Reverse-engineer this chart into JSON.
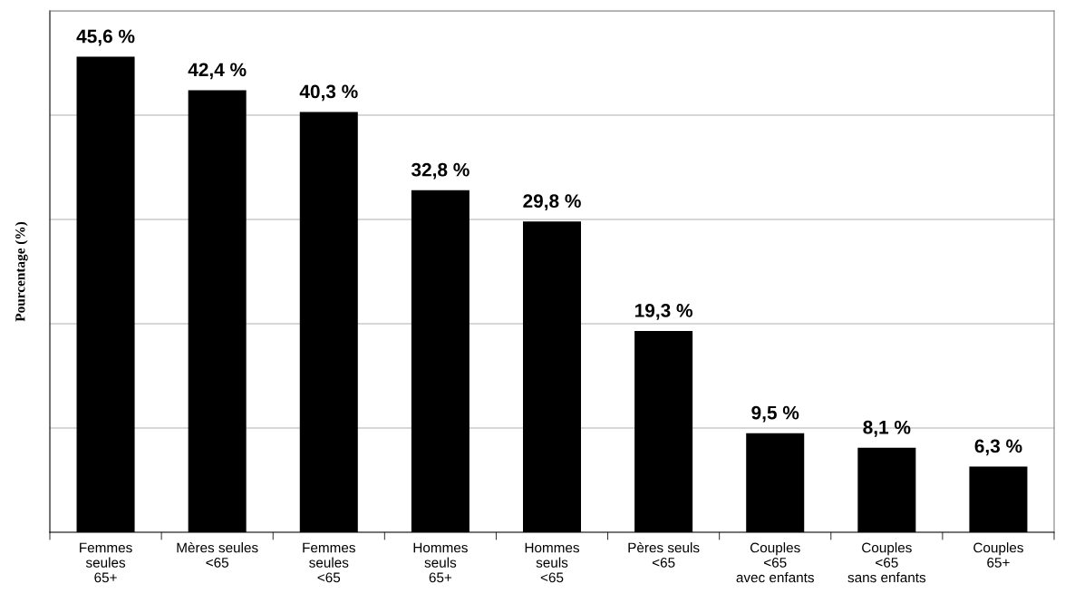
{
  "chart_data": {
    "type": "bar",
    "ylabel": "Pourcentage (%)",
    "categories": [
      "Femmes\nseules\n65+",
      "Mères seules\n<65",
      "Femmes\nseules\n<65",
      "Hommes\nseuls\n65+",
      "Hommes\nseuls\n<65",
      "Pères seuls\n<65",
      "Couples\n<65\navec enfants",
      "Couples\n<65\nsans enfants",
      "Couples\n65+"
    ],
    "values": [
      45.6,
      42.4,
      40.3,
      32.8,
      29.8,
      19.3,
      9.5,
      8.1,
      6.3
    ],
    "value_labels": [
      "45,6 %",
      "42,4 %",
      "40,3 %",
      "32,8 %",
      "29,8 %",
      "19,3 %",
      "9,5 %",
      "8,1 %",
      "6,3 %"
    ],
    "color": "#000000",
    "ylim": [
      0,
      50
    ],
    "yticks": [
      {
        "value": 0,
        "label": null
      },
      {
        "value": 10,
        "label": null
      },
      {
        "value": 20,
        "label": null
      },
      {
        "value": 30,
        "label": null
      },
      {
        "value": 40,
        "label": null
      },
      {
        "value": 50,
        "label": null
      }
    ],
    "grid": "y",
    "legend": false
  }
}
